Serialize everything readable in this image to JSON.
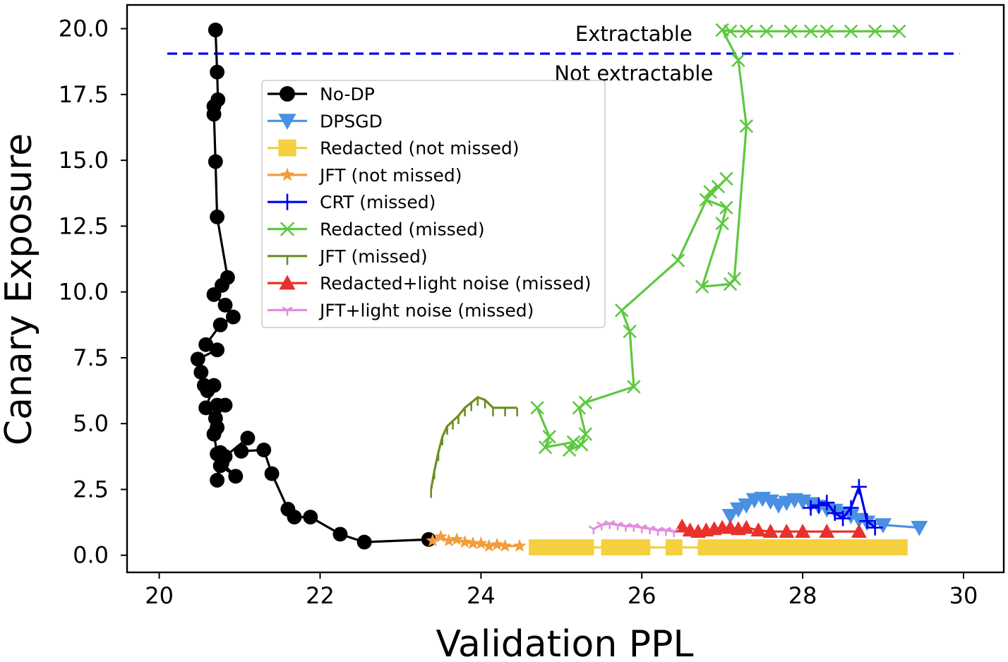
{
  "chart_data": {
    "type": "line",
    "title": "",
    "xlabel": "Validation PPL",
    "ylabel": "Canary Exposure",
    "xlim": [
      19.6,
      30.5
    ],
    "ylim": [
      -0.65,
      20.9
    ],
    "xticks": [
      20,
      22,
      24,
      26,
      28,
      30
    ],
    "xtick_labels": [
      "20",
      "22",
      "24",
      "26",
      "28",
      "30"
    ],
    "yticks": [
      0,
      2.5,
      5,
      7.5,
      10,
      12.5,
      15,
      17.5,
      20
    ],
    "ytick_labels": [
      "0.0",
      "2.5",
      "5.0",
      "7.5",
      "10.0",
      "12.5",
      "15.0",
      "17.5",
      "20.0"
    ],
    "threshold": {
      "y": 19.05,
      "x": [
        20.1,
        29.95
      ],
      "color": "#0000ee",
      "style": "dashed"
    },
    "annotations": [
      {
        "text": "Extractable",
        "x": 25.9,
        "y": 19.8
      },
      {
        "text": "Not extractable",
        "x": 25.9,
        "y": 18.3
      }
    ],
    "legend_position": "upper-left",
    "series": [
      {
        "name": "No-DP",
        "color": "#000000",
        "marker": "circle",
        "x": [
          20.7,
          20.72,
          20.73,
          20.68,
          20.68,
          20.7,
          20.72,
          20.85,
          20.78,
          20.68,
          20.82,
          20.92,
          20.76,
          20.58,
          20.72,
          20.48,
          20.52,
          20.56,
          20.6,
          20.68,
          20.58,
          20.72,
          20.82,
          20.7,
          20.72,
          20.68,
          20.72,
          20.76,
          20.72,
          20.76,
          20.95,
          20.78,
          20.82,
          21.1,
          21.02,
          21.3,
          21.4,
          21.6,
          21.68,
          21.88,
          22.25,
          22.55,
          23.35
        ],
        "y": [
          19.95,
          18.35,
          17.3,
          17.05,
          16.75,
          14.95,
          12.85,
          10.55,
          10.25,
          9.9,
          9.5,
          9.05,
          8.75,
          8.0,
          7.8,
          7.45,
          6.95,
          6.45,
          6.25,
          6.45,
          5.6,
          5.7,
          5.7,
          5.2,
          4.85,
          4.6,
          3.85,
          3.9,
          2.85,
          3.4,
          3.0,
          3.5,
          3.75,
          4.45,
          3.95,
          4.0,
          3.1,
          1.75,
          1.45,
          1.45,
          0.8,
          0.5,
          0.6
        ]
      },
      {
        "name": "DPSGD",
        "color": "#4a90e2",
        "marker": "triangle-down",
        "x": [
          27.1,
          27.2,
          27.3,
          27.4,
          27.5,
          27.6,
          27.7,
          27.8,
          27.9,
          28.0,
          28.1,
          28.2,
          28.3,
          28.4,
          28.5,
          28.6,
          28.7,
          28.8,
          29.0,
          29.45
        ],
        "y": [
          1.5,
          1.75,
          1.9,
          2.1,
          2.15,
          2.05,
          1.9,
          2.0,
          2.1,
          2.05,
          1.95,
          1.85,
          1.75,
          1.7,
          1.6,
          1.5,
          1.35,
          1.25,
          1.15,
          1.05
        ]
      },
      {
        "name": "Redacted (not missed)",
        "color": "#f4d03f",
        "marker": "square",
        "x": [
          24.7,
          24.9,
          25.1,
          25.3,
          25.6,
          25.8,
          26.0,
          26.4,
          26.8,
          27.0,
          27.2,
          27.4,
          27.6,
          27.8,
          28.0,
          28.2,
          28.4,
          28.6,
          28.8,
          29.0,
          29.2
        ],
        "y": [
          0.3,
          0.3,
          0.3,
          0.3,
          0.3,
          0.3,
          0.3,
          0.3,
          0.3,
          0.3,
          0.3,
          0.3,
          0.3,
          0.3,
          0.3,
          0.3,
          0.3,
          0.3,
          0.3,
          0.3,
          0.3
        ]
      },
      {
        "name": "JFT (not missed)",
        "color": "#f39c3c",
        "marker": "star",
        "x": [
          23.4,
          23.5,
          23.6,
          23.7,
          23.8,
          23.9,
          24.0,
          24.1,
          24.2,
          24.3,
          24.48
        ],
        "y": [
          0.55,
          0.7,
          0.55,
          0.6,
          0.5,
          0.45,
          0.45,
          0.35,
          0.4,
          0.35,
          0.35
        ]
      },
      {
        "name": "CRT (missed)",
        "color": "#0000ee",
        "marker": "plus",
        "x": [
          28.1,
          28.2,
          28.3,
          28.4,
          28.5,
          28.6,
          28.7,
          28.8,
          28.9
        ],
        "y": [
          1.8,
          1.9,
          2.0,
          1.6,
          1.4,
          1.8,
          2.6,
          1.3,
          1.05
        ]
      },
      {
        "name": "Redacted (missed)",
        "color": "#5dc840",
        "marker": "x",
        "x": [
          29.2,
          28.9,
          28.6,
          28.3,
          28.1,
          27.85,
          27.55,
          27.3,
          27.1,
          27.0,
          27.2,
          27.3,
          27.15,
          27.1,
          26.75,
          27.0,
          27.05,
          26.8,
          27.05,
          26.95,
          26.85,
          26.45,
          25.75,
          25.85,
          25.9,
          25.3,
          25.22,
          25.3,
          25.25,
          25.1,
          25.15,
          24.8,
          24.85,
          24.7
        ],
        "y": [
          19.9,
          19.9,
          19.9,
          19.9,
          19.9,
          19.9,
          19.9,
          19.9,
          19.9,
          19.95,
          18.8,
          16.3,
          10.5,
          10.3,
          10.2,
          12.6,
          13.2,
          13.5,
          14.3,
          14.0,
          13.8,
          11.2,
          9.3,
          8.5,
          6.4,
          5.8,
          5.6,
          4.6,
          4.2,
          4.0,
          4.3,
          4.1,
          4.5,
          5.6
        ]
      },
      {
        "name": "JFT (missed)",
        "color": "#6b8e23",
        "marker": "tick",
        "x": [
          23.38,
          23.42,
          23.47,
          23.52,
          23.58,
          23.65,
          23.72,
          23.8,
          23.88,
          23.96,
          24.05,
          24.15,
          24.3,
          24.45
        ],
        "y": [
          2.5,
          3.2,
          3.9,
          4.5,
          4.9,
          5.1,
          5.3,
          5.6,
          5.8,
          6.0,
          5.9,
          5.6,
          5.6,
          5.6
        ]
      },
      {
        "name": "Redacted+light noise (missed)",
        "color": "#e8312a",
        "marker": "triangle-up",
        "x": [
          26.5,
          26.6,
          26.7,
          26.8,
          26.9,
          27.0,
          27.1,
          27.2,
          27.3,
          27.45,
          27.6,
          27.8,
          28.0,
          28.3,
          28.7
        ],
        "y": [
          1.1,
          0.95,
          0.9,
          0.95,
          1.0,
          1.05,
          1.05,
          1.0,
          1.05,
          0.95,
          0.9,
          0.9,
          0.9,
          0.9,
          0.9
        ]
      },
      {
        "name": "JFT+light noise (missed)",
        "color": "#e38de0",
        "marker": "tri",
        "x": [
          25.4,
          25.5,
          25.6,
          25.7,
          25.8,
          25.9,
          26.0,
          26.1,
          26.2,
          26.3,
          26.4
        ],
        "y": [
          1.0,
          1.15,
          1.2,
          1.15,
          1.1,
          1.1,
          1.05,
          1.0,
          0.95,
          0.95,
          0.9
        ]
      }
    ]
  }
}
